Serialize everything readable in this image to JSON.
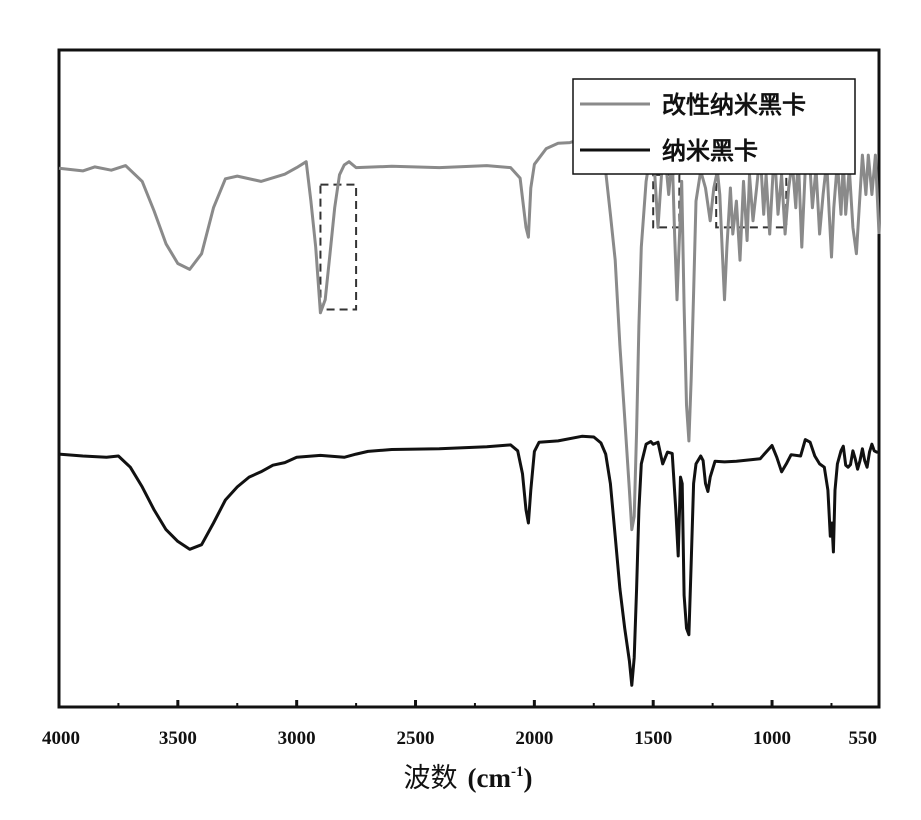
{
  "chart_data": {
    "type": "line",
    "title": "",
    "xlabel_main": "波数",
    "xlabel_unit": "(cm",
    "xlabel_sup": "-1",
    "xlabel_close": ")",
    "ylabel": "",
    "xlim": [
      4000,
      550
    ],
    "x_reversed": true,
    "x_ticks": [
      {
        "value": 4000,
        "label": "4000"
      },
      {
        "value": 3500,
        "label": "3500"
      },
      {
        "value": 3000,
        "label": "3000"
      },
      {
        "value": 2500,
        "label": "2500"
      },
      {
        "value": 2000,
        "label": "2000"
      },
      {
        "value": 1500,
        "label": "1500"
      },
      {
        "value": 1000,
        "label": "1000"
      },
      {
        "value": 550,
        "label": "550"
      }
    ],
    "ylim": [
      0,
      100
    ],
    "y_ticks_visible": false,
    "grid": false,
    "legend_position": "top-right",
    "series": [
      {
        "name": "改性纳米黑卡",
        "color": "#8a8a8a",
        "points": [
          [
            4000,
            82
          ],
          [
            3900,
            81.6
          ],
          [
            3850,
            82.2
          ],
          [
            3780,
            81.7
          ],
          [
            3720,
            82.4
          ],
          [
            3650,
            80
          ],
          [
            3600,
            75.5
          ],
          [
            3550,
            70.5
          ],
          [
            3500,
            67.5
          ],
          [
            3450,
            66.6
          ],
          [
            3400,
            69
          ],
          [
            3350,
            76
          ],
          [
            3300,
            80.4
          ],
          [
            3250,
            80.8
          ],
          [
            3150,
            80
          ],
          [
            3050,
            81.1
          ],
          [
            3000,
            82.1
          ],
          [
            2960,
            83
          ],
          [
            2940,
            77
          ],
          [
            2920,
            70
          ],
          [
            2900,
            60
          ],
          [
            2880,
            62
          ],
          [
            2860,
            69
          ],
          [
            2840,
            76
          ],
          [
            2820,
            81
          ],
          [
            2800,
            82.5
          ],
          [
            2780,
            83
          ],
          [
            2750,
            82.1
          ],
          [
            2600,
            82.3
          ],
          [
            2400,
            82.1
          ],
          [
            2200,
            82.4
          ],
          [
            2100,
            82.1
          ],
          [
            2060,
            80.5
          ],
          [
            2035,
            73
          ],
          [
            2025,
            71.5
          ],
          [
            2015,
            79
          ],
          [
            2000,
            82.6
          ],
          [
            1950,
            85
          ],
          [
            1900,
            85.8
          ],
          [
            1850,
            85.9
          ],
          [
            1800,
            86.5
          ],
          [
            1750,
            84.8
          ],
          [
            1700,
            81.5
          ],
          [
            1680,
            75
          ],
          [
            1660,
            68
          ],
          [
            1640,
            55
          ],
          [
            1620,
            44
          ],
          [
            1600,
            33
          ],
          [
            1590,
            27
          ],
          [
            1580,
            29
          ],
          [
            1570,
            42
          ],
          [
            1560,
            58
          ],
          [
            1550,
            70
          ],
          [
            1530,
            80
          ],
          [
            1510,
            84.5
          ],
          [
            1495,
            82
          ],
          [
            1480,
            73
          ],
          [
            1465,
            81
          ],
          [
            1450,
            84
          ],
          [
            1435,
            78
          ],
          [
            1420,
            84
          ],
          [
            1410,
            72
          ],
          [
            1400,
            62
          ],
          [
            1390,
            71
          ],
          [
            1380,
            80
          ],
          [
            1370,
            61
          ],
          [
            1360,
            46
          ],
          [
            1350,
            40.5
          ],
          [
            1340,
            50
          ],
          [
            1330,
            63
          ],
          [
            1320,
            77
          ],
          [
            1300,
            81.6
          ],
          [
            1280,
            79
          ],
          [
            1260,
            74
          ],
          [
            1245,
            79
          ],
          [
            1230,
            81.6
          ],
          [
            1220,
            78
          ],
          [
            1210,
            70
          ],
          [
            1200,
            62
          ],
          [
            1190,
            70
          ],
          [
            1175,
            79
          ],
          [
            1165,
            72
          ],
          [
            1150,
            77
          ],
          [
            1135,
            68
          ],
          [
            1120,
            80
          ],
          [
            1105,
            71
          ],
          [
            1095,
            81
          ],
          [
            1080,
            74
          ],
          [
            1065,
            79
          ],
          [
            1050,
            84.5
          ],
          [
            1035,
            75
          ],
          [
            1025,
            81
          ],
          [
            1010,
            72
          ],
          [
            1000,
            78.5
          ],
          [
            990,
            85
          ],
          [
            975,
            75
          ],
          [
            960,
            81
          ],
          [
            945,
            72
          ],
          [
            930,
            79
          ],
          [
            915,
            83
          ],
          [
            900,
            76
          ],
          [
            890,
            84
          ],
          [
            875,
            70
          ],
          [
            860,
            82
          ],
          [
            845,
            85
          ],
          [
            830,
            76
          ],
          [
            815,
            82
          ],
          [
            800,
            72
          ],
          [
            785,
            78
          ],
          [
            770,
            83
          ],
          [
            760,
            75.5
          ],
          [
            750,
            68.5
          ],
          [
            740,
            76
          ],
          [
            725,
            83
          ],
          [
            710,
            75
          ],
          [
            700,
            83
          ],
          [
            690,
            75
          ],
          [
            675,
            82
          ],
          [
            660,
            73
          ],
          [
            645,
            69
          ],
          [
            635,
            75
          ],
          [
            620,
            84
          ],
          [
            605,
            78
          ],
          [
            595,
            84
          ],
          [
            580,
            78
          ],
          [
            565,
            84
          ],
          [
            555,
            76
          ],
          [
            550,
            72
          ]
        ]
      },
      {
        "name": "纳米黑卡",
        "color": "#111111",
        "points": [
          [
            4000,
            38.5
          ],
          [
            3900,
            38.2
          ],
          [
            3800,
            38
          ],
          [
            3750,
            38.2
          ],
          [
            3700,
            36.5
          ],
          [
            3650,
            33.5
          ],
          [
            3600,
            30
          ],
          [
            3550,
            27
          ],
          [
            3500,
            25.2
          ],
          [
            3450,
            24
          ],
          [
            3400,
            24.7
          ],
          [
            3350,
            28
          ],
          [
            3300,
            31.5
          ],
          [
            3250,
            33.5
          ],
          [
            3200,
            35
          ],
          [
            3150,
            35.8
          ],
          [
            3100,
            36.8
          ],
          [
            3050,
            37.2
          ],
          [
            3000,
            38
          ],
          [
            2900,
            38.3
          ],
          [
            2800,
            38
          ],
          [
            2750,
            38.5
          ],
          [
            2700,
            38.9
          ],
          [
            2600,
            39.2
          ],
          [
            2400,
            39.3
          ],
          [
            2200,
            39.6
          ],
          [
            2100,
            39.9
          ],
          [
            2070,
            39
          ],
          [
            2050,
            35.5
          ],
          [
            2035,
            30
          ],
          [
            2025,
            28
          ],
          [
            2015,
            33
          ],
          [
            2000,
            38.9
          ],
          [
            1980,
            40.3
          ],
          [
            1900,
            40.5
          ],
          [
            1800,
            41.2
          ],
          [
            1750,
            41.1
          ],
          [
            1720,
            40.2
          ],
          [
            1700,
            38.5
          ],
          [
            1680,
            34
          ],
          [
            1660,
            26
          ],
          [
            1640,
            18
          ],
          [
            1620,
            12
          ],
          [
            1600,
            7
          ],
          [
            1590,
            3.3
          ],
          [
            1580,
            7.5
          ],
          [
            1570,
            18
          ],
          [
            1560,
            30
          ],
          [
            1550,
            37
          ],
          [
            1530,
            40
          ],
          [
            1510,
            40.4
          ],
          [
            1500,
            40
          ],
          [
            1480,
            40.3
          ],
          [
            1460,
            37
          ],
          [
            1440,
            38.8
          ],
          [
            1420,
            38.6
          ],
          [
            1405,
            30
          ],
          [
            1395,
            23
          ],
          [
            1385,
            35
          ],
          [
            1378,
            34
          ],
          [
            1370,
            17
          ],
          [
            1360,
            12
          ],
          [
            1350,
            11
          ],
          [
            1340,
            22
          ],
          [
            1330,
            34
          ],
          [
            1320,
            37
          ],
          [
            1300,
            38.2
          ],
          [
            1290,
            37.5
          ],
          [
            1280,
            34
          ],
          [
            1270,
            32.8
          ],
          [
            1260,
            35
          ],
          [
            1240,
            37.4
          ],
          [
            1200,
            37.3
          ],
          [
            1150,
            37.4
          ],
          [
            1100,
            37.6
          ],
          [
            1050,
            37.8
          ],
          [
            1000,
            39.8
          ],
          [
            980,
            38
          ],
          [
            960,
            35.8
          ],
          [
            940,
            37
          ],
          [
            920,
            38.4
          ],
          [
            880,
            38.2
          ],
          [
            860,
            40.7
          ],
          [
            840,
            40.3
          ],
          [
            820,
            38.2
          ],
          [
            800,
            37
          ],
          [
            780,
            36.5
          ],
          [
            765,
            33
          ],
          [
            755,
            26
          ],
          [
            748,
            28
          ],
          [
            742,
            23.6
          ],
          [
            735,
            33
          ],
          [
            725,
            37
          ],
          [
            710,
            39
          ],
          [
            700,
            39.7
          ],
          [
            690,
            36.8
          ],
          [
            680,
            36.5
          ],
          [
            670,
            36.9
          ],
          [
            660,
            39
          ],
          [
            650,
            37.8
          ],
          [
            640,
            36.2
          ],
          [
            630,
            37.5
          ],
          [
            620,
            39.3
          ],
          [
            610,
            37.5
          ],
          [
            600,
            36.5
          ],
          [
            590,
            38.8
          ],
          [
            580,
            40
          ],
          [
            570,
            39
          ],
          [
            560,
            38.8
          ],
          [
            550,
            38.8
          ]
        ]
      }
    ],
    "annotations": [
      {
        "type": "dashed-box",
        "x_range": [
          2900,
          2750
        ],
        "y_range": [
          60.5,
          79.5
        ]
      },
      {
        "type": "dashed-box",
        "x_range": [
          1500,
          1390
        ],
        "y_range": [
          73,
          81
        ]
      },
      {
        "type": "dashed-box",
        "x_range": [
          1235,
          940
        ],
        "y_range": [
          73,
          85.7
        ]
      }
    ]
  }
}
